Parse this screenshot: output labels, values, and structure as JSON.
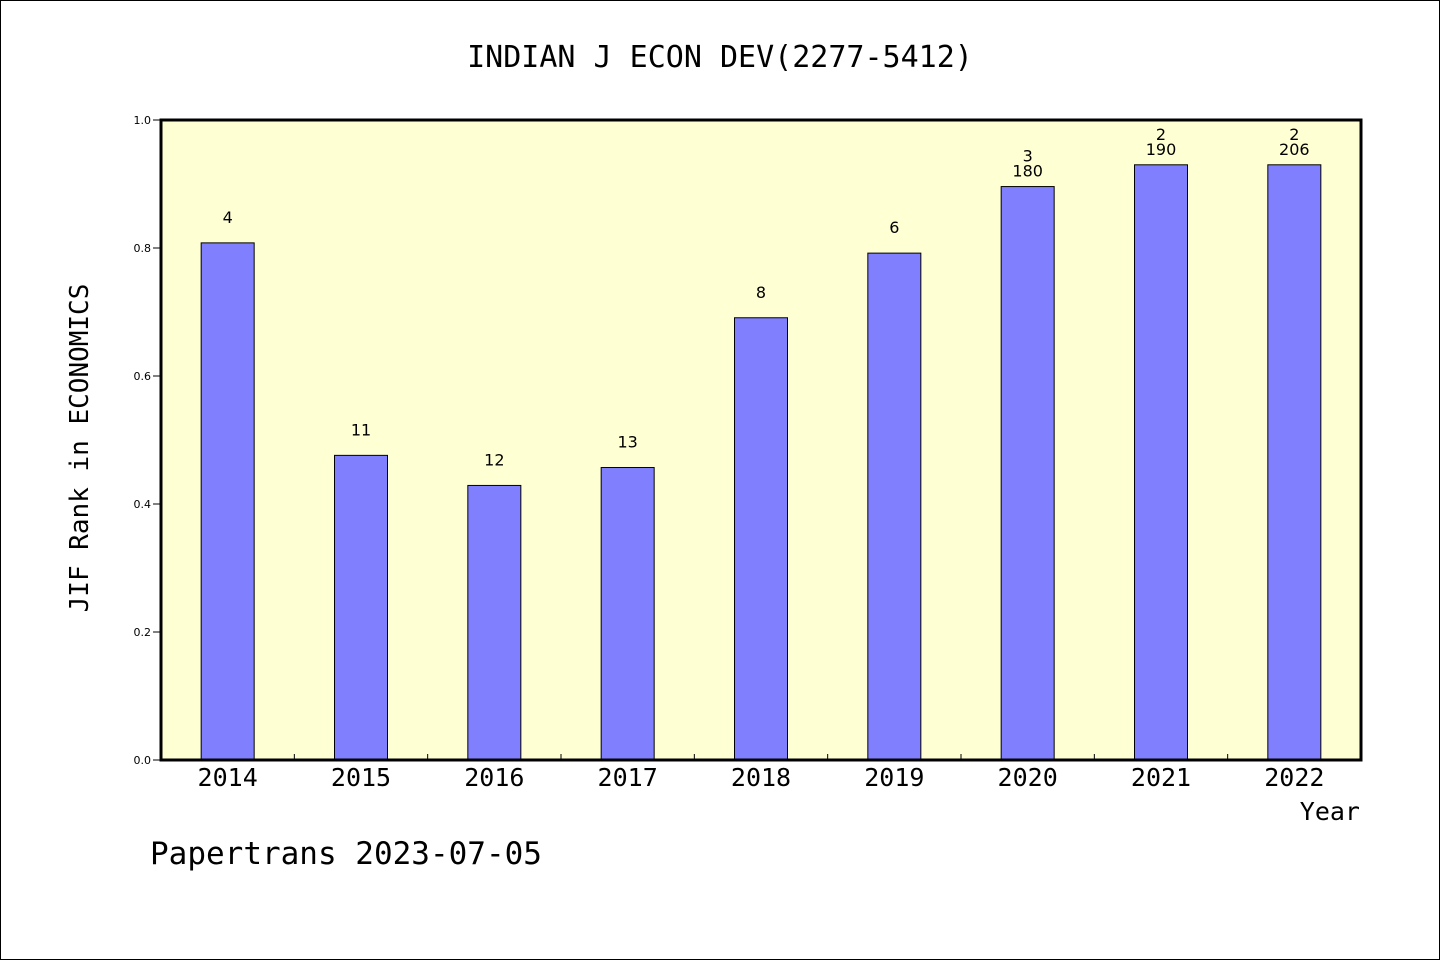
{
  "chart_data": {
    "type": "bar",
    "title": "INDIAN J ECON DEV(2277-5412)",
    "xlabel": "Year",
    "ylabel": "JIF Rank in ECONOMICS",
    "ylim": [
      0,
      1.0
    ],
    "yticks": [
      "0.0",
      "0.2",
      "0.4",
      "0.6",
      "0.8",
      "1.0"
    ],
    "categories": [
      "2014",
      "2015",
      "2016",
      "2017",
      "2018",
      "2019",
      "2020",
      "2021",
      "2022"
    ],
    "values": [
      0.808,
      0.476,
      0.429,
      0.457,
      0.691,
      0.792,
      0.896,
      0.93,
      0.93
    ],
    "bar_labels": [
      [
        "4"
      ],
      [
        "11"
      ],
      [
        "12"
      ],
      [
        "13"
      ],
      [
        "8"
      ],
      [
        "6"
      ],
      [
        "3",
        "180"
      ],
      [
        "2",
        "190"
      ],
      [
        "2",
        "206"
      ]
    ],
    "plot_background": "#ffffd4",
    "bar_color": "#8080ff",
    "grid": false
  },
  "footer": "Papertrans 2023-07-05"
}
